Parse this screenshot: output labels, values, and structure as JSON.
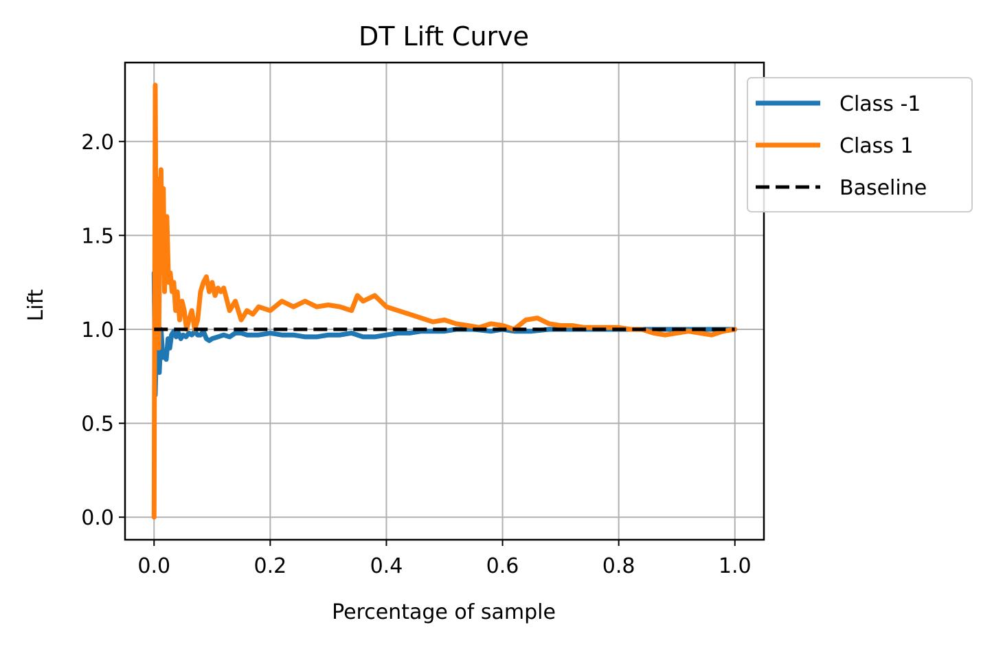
{
  "chart_data": {
    "type": "line",
    "title": "DT Lift Curve",
    "xlabel": "Percentage of sample",
    "ylabel": "Lift",
    "xlim": [
      -0.05,
      1.05
    ],
    "ylim": [
      -0.12,
      2.42
    ],
    "xticks": [
      0.0,
      0.2,
      0.4,
      0.6,
      0.8,
      1.0
    ],
    "xtick_labels": [
      "0.0",
      "0.2",
      "0.4",
      "0.6",
      "0.8",
      "1.0"
    ],
    "yticks": [
      0.0,
      0.5,
      1.0,
      1.5,
      2.0
    ],
    "ytick_labels": [
      "0.0",
      "0.5",
      "1.0",
      "1.5",
      "2.0"
    ],
    "grid": true,
    "legend_position": "upper-right-outside",
    "series": [
      {
        "name": "Class -1",
        "color": "#1f77b4",
        "style": "solid",
        "x": [
          0.0,
          0.002,
          0.004,
          0.006,
          0.009,
          0.012,
          0.015,
          0.018,
          0.021,
          0.024,
          0.027,
          0.03,
          0.034,
          0.038,
          0.042,
          0.046,
          0.05,
          0.055,
          0.06,
          0.065,
          0.07,
          0.075,
          0.08,
          0.085,
          0.09,
          0.095,
          0.1,
          0.11,
          0.12,
          0.13,
          0.14,
          0.15,
          0.16,
          0.18,
          0.2,
          0.22,
          0.24,
          0.26,
          0.28,
          0.3,
          0.32,
          0.34,
          0.36,
          0.38,
          0.4,
          0.42,
          0.44,
          0.46,
          0.48,
          0.5,
          0.52,
          0.55,
          0.58,
          0.6,
          0.62,
          0.65,
          0.68,
          0.7,
          0.72,
          0.75,
          0.78,
          0.8,
          0.82,
          0.85,
          0.88,
          0.9,
          0.92,
          0.94,
          0.96,
          0.98,
          1.0
        ],
        "y": [
          1.3,
          0.65,
          0.92,
          0.8,
          0.77,
          1.0,
          0.85,
          0.88,
          0.84,
          0.95,
          0.9,
          0.97,
          0.99,
          0.96,
          0.98,
          0.95,
          0.97,
          0.96,
          0.98,
          0.97,
          0.99,
          0.97,
          0.97,
          0.99,
          0.95,
          0.94,
          0.95,
          0.96,
          0.97,
          0.96,
          0.98,
          0.98,
          0.97,
          0.97,
          0.98,
          0.97,
          0.97,
          0.96,
          0.96,
          0.97,
          0.97,
          0.98,
          0.96,
          0.96,
          0.97,
          0.98,
          0.98,
          0.99,
          0.99,
          0.99,
          1.0,
          1.0,
          0.99,
          1.0,
          0.99,
          0.99,
          1.0,
          1.0,
          1.0,
          1.0,
          1.0,
          1.0,
          1.0,
          1.0,
          1.0,
          1.0,
          1.0,
          1.0,
          1.0,
          1.0,
          1.0
        ]
      },
      {
        "name": "Class 1",
        "color": "#ff7f0e",
        "style": "solid",
        "x": [
          0.0,
          0.002,
          0.004,
          0.006,
          0.008,
          0.01,
          0.012,
          0.014,
          0.016,
          0.018,
          0.02,
          0.022,
          0.025,
          0.028,
          0.031,
          0.034,
          0.037,
          0.04,
          0.044,
          0.048,
          0.052,
          0.056,
          0.06,
          0.065,
          0.07,
          0.075,
          0.08,
          0.085,
          0.09,
          0.095,
          0.1,
          0.105,
          0.11,
          0.115,
          0.12,
          0.13,
          0.14,
          0.15,
          0.16,
          0.17,
          0.18,
          0.2,
          0.22,
          0.24,
          0.26,
          0.28,
          0.3,
          0.32,
          0.34,
          0.35,
          0.36,
          0.38,
          0.4,
          0.42,
          0.44,
          0.46,
          0.48,
          0.5,
          0.52,
          0.54,
          0.56,
          0.58,
          0.6,
          0.62,
          0.64,
          0.66,
          0.68,
          0.7,
          0.72,
          0.74,
          0.76,
          0.78,
          0.8,
          0.82,
          0.84,
          0.86,
          0.88,
          0.9,
          0.92,
          0.94,
          0.96,
          0.98,
          1.0
        ],
        "y": [
          0.0,
          2.3,
          1.0,
          1.8,
          0.9,
          1.5,
          1.85,
          1.3,
          1.75,
          1.2,
          1.55,
          1.6,
          1.25,
          1.3,
          1.2,
          1.25,
          1.1,
          1.2,
          1.05,
          1.15,
          1.1,
          1.0,
          1.05,
          1.1,
          1.0,
          1.05,
          1.2,
          1.25,
          1.28,
          1.2,
          1.25,
          1.18,
          1.22,
          1.2,
          1.22,
          1.1,
          1.15,
          1.05,
          1.1,
          1.08,
          1.12,
          1.1,
          1.15,
          1.12,
          1.15,
          1.12,
          1.13,
          1.12,
          1.1,
          1.18,
          1.15,
          1.18,
          1.12,
          1.1,
          1.08,
          1.06,
          1.04,
          1.05,
          1.03,
          1.02,
          1.01,
          1.03,
          1.02,
          1.0,
          1.05,
          1.06,
          1.03,
          1.02,
          1.02,
          1.01,
          1.01,
          1.01,
          1.01,
          1.0,
          1.0,
          0.98,
          0.97,
          0.98,
          0.99,
          0.98,
          0.97,
          0.99,
          1.0
        ]
      },
      {
        "name": "Baseline",
        "color": "#000000",
        "style": "dashed",
        "x": [
          0.0,
          1.0
        ],
        "y": [
          1.0,
          1.0
        ]
      }
    ]
  }
}
